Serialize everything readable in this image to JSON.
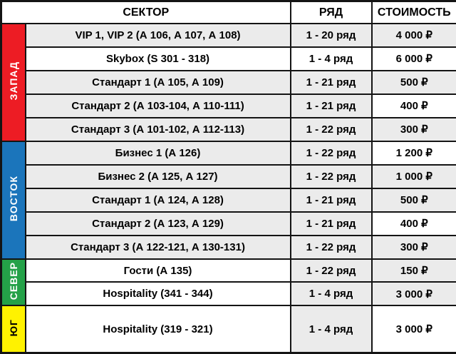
{
  "header": {
    "sector": "СЕКТОР",
    "row": "РЯД",
    "price": "СТОИМОСТЬ"
  },
  "colors": {
    "shaded_cell": "#ebebeb",
    "plain_cell": "#ffffff",
    "border": "#141414",
    "west_bar": "#ed1c24",
    "east_bar": "#1b75bb",
    "north_bar": "#24a148",
    "south_bar": "#fff200"
  },
  "sections": [
    {
      "name": "ЗАПАД",
      "color": "#ed1c24",
      "text_color": "#ffffff",
      "rows": [
        {
          "sector": "VIP 1, VIP 2 (А 106, А 107, А 108)",
          "row": "1 - 20 ряд",
          "price": "4 000 ₽",
          "bg": [
            "gray",
            "gray",
            "gray"
          ]
        },
        {
          "sector": "Skybox (S 301 - 318)",
          "row": "1 - 4 ряд",
          "price": "6 000 ₽",
          "bg": [
            "white",
            "white",
            "white"
          ]
        },
        {
          "sector": "Стандарт 1 (А 105, А 109)",
          "row": "1 - 21 ряд",
          "price": "500 ₽",
          "bg": [
            "gray",
            "gray",
            "gray"
          ]
        },
        {
          "sector": "Стандарт 2 (А 103-104, А 110-111)",
          "row": "1 - 21 ряд",
          "price": "400 ₽",
          "bg": [
            "gray",
            "gray",
            "white"
          ]
        },
        {
          "sector": "Стандарт 3 (А 101-102, А 112-113)",
          "row": "1 - 22 ряд",
          "price": "300 ₽",
          "bg": [
            "gray",
            "gray",
            "gray"
          ]
        }
      ]
    },
    {
      "name": "ВОСТОК",
      "color": "#1b75bb",
      "text_color": "#ffffff",
      "rows": [
        {
          "sector": "Бизнес 1 (А 126)",
          "row": "1 - 22 ряд",
          "price": "1 200 ₽",
          "bg": [
            "gray",
            "gray",
            "white"
          ]
        },
        {
          "sector": "Бизнес 2 (А 125, А 127)",
          "row": "1 - 22 ряд",
          "price": "1 000 ₽",
          "bg": [
            "gray",
            "gray",
            "gray"
          ]
        },
        {
          "sector": "Стандарт 1 (А 124, А 128)",
          "row": "1 - 21 ряд",
          "price": "500 ₽",
          "bg": [
            "gray",
            "gray",
            "gray"
          ]
        },
        {
          "sector": "Стандарт 2 (А 123, А 129)",
          "row": "1 - 21 ряд",
          "price": "400 ₽",
          "bg": [
            "gray",
            "gray",
            "white"
          ]
        },
        {
          "sector": "Стандарт 3 (А 122-121, А 130-131)",
          "row": "1 - 22 ряд",
          "price": "300 ₽",
          "bg": [
            "gray",
            "gray",
            "gray"
          ]
        }
      ]
    },
    {
      "name": "СЕВЕР",
      "color": "#24a148",
      "text_color": "#ffffff",
      "rows": [
        {
          "sector": "Гости (А 135)",
          "row": "1 - 22 ряд",
          "price": "150 ₽",
          "bg": [
            "white",
            "gray",
            "gray"
          ]
        },
        {
          "sector": "Hospitality (341 - 344)",
          "row": "1 - 4 ряд",
          "price": "3 000 ₽",
          "bg": [
            "white",
            "gray",
            "gray"
          ]
        }
      ]
    },
    {
      "name": "ЮГ",
      "color": "#fff200",
      "text_color": "#000000",
      "rows": [
        {
          "sector": "Hospitality (319 - 321)",
          "row": "1 - 4 ряд",
          "price": "3 000 ₽",
          "bg": [
            "white",
            "gray",
            "white"
          ],
          "tall": true
        }
      ]
    }
  ]
}
